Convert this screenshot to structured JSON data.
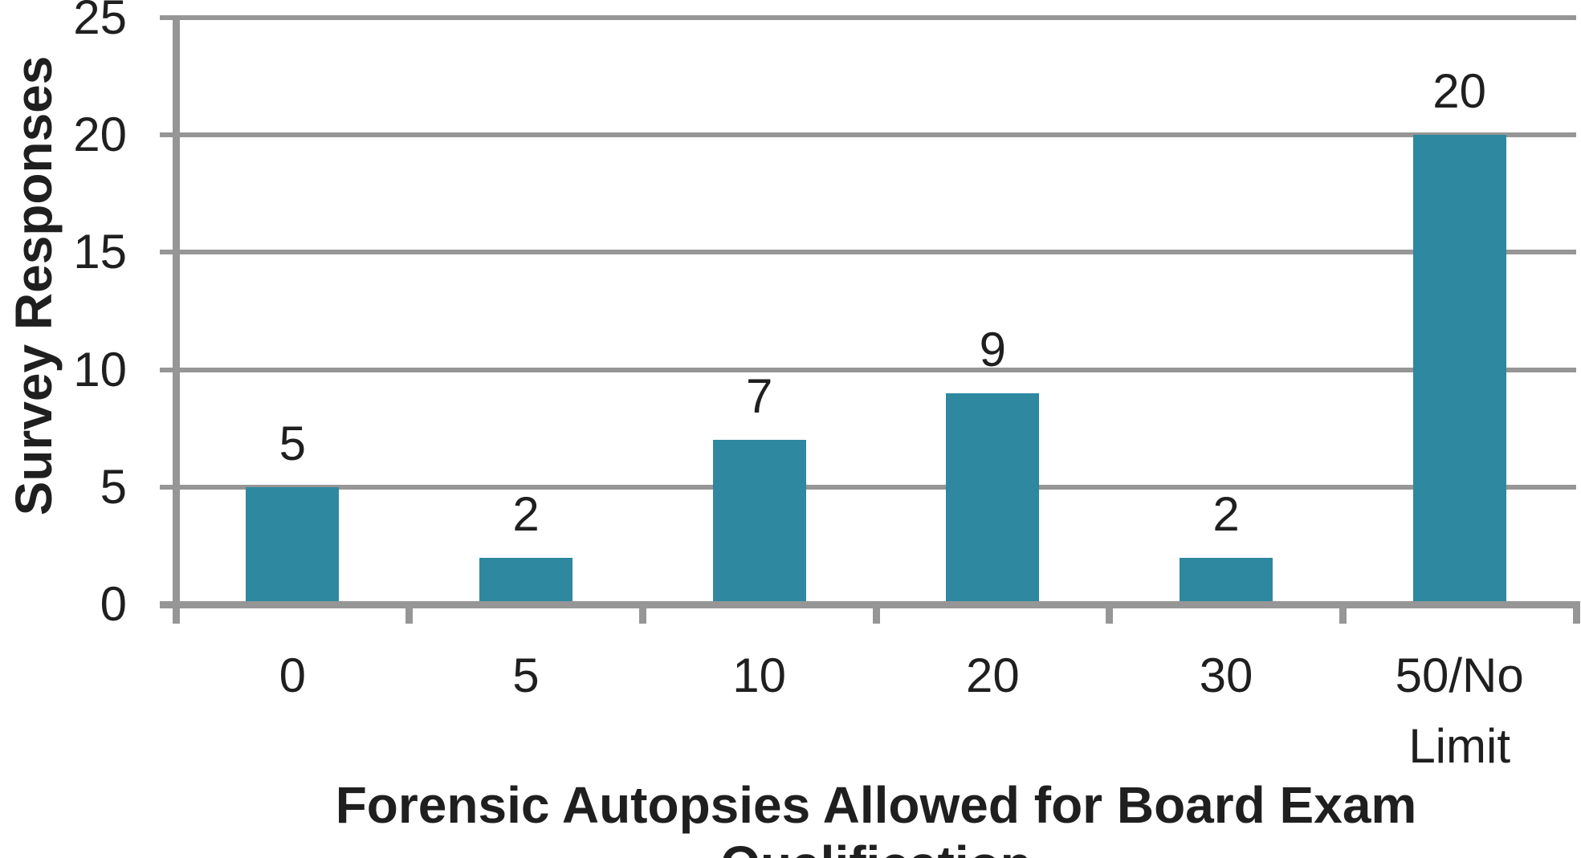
{
  "chart_data": {
    "type": "bar",
    "categories": [
      "0",
      "5",
      "10",
      "20",
      "30",
      "50/No Limit"
    ],
    "values": [
      5,
      2,
      7,
      9,
      2,
      20
    ],
    "data_labels": [
      "5",
      "2",
      "7",
      "9",
      "2",
      "20"
    ],
    "xlabel": "Forensic Autopsies Allowed for Board Exam Qualification",
    "ylabel": "Survey Responses",
    "ylim": [
      0,
      25
    ],
    "ytick_interval": 5,
    "yticks": [
      "0",
      "5",
      "10",
      "15",
      "20",
      "25"
    ],
    "grid": "horizontal",
    "legend": "none",
    "bar_color": "#2D88A0",
    "gridline_color": "#969696",
    "axis_color": "#969696",
    "text_color": "#1F1F1F",
    "background_color": "#FFFFFF"
  }
}
